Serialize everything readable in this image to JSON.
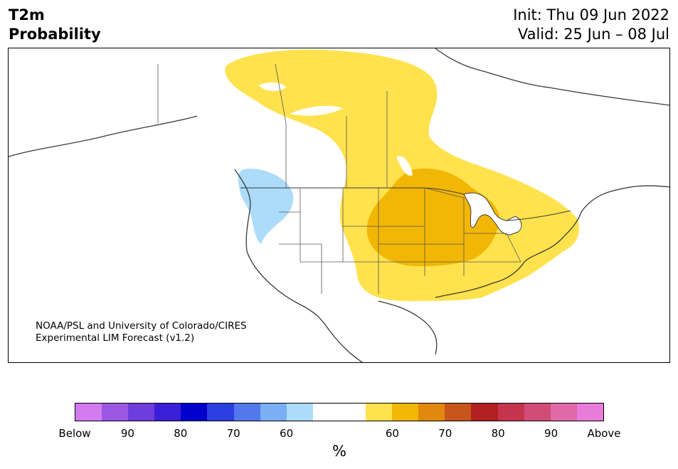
{
  "header": {
    "variable": "T2m",
    "product": "Probability",
    "init": "Init: Thu 09 Jun 2022",
    "valid": "Valid: 25 Jun – 08 Jul"
  },
  "map": {
    "credit_line1": "NOAA/PSL and University of Colorado/CIRES",
    "credit_line2": "Experimental LIM Forecast (v1.2)",
    "regions": [
      {
        "category": "above",
        "level": "50-60",
        "color": "#ffe24d",
        "area": "Canadian Arctic to southern Plains and East Coast"
      },
      {
        "category": "above",
        "level": "60-70",
        "color": "#f2b704",
        "area": "Central Plains and Midwest"
      },
      {
        "category": "below",
        "level": "50-60",
        "color": "#acdcfa",
        "area": "Pacific Northwest"
      }
    ]
  },
  "colorbar": {
    "label": "%",
    "colors": [
      "#d27bf0",
      "#9b58e3",
      "#6f3cdc",
      "#3b1fd6",
      "#0000cd",
      "#2c3fe0",
      "#5377ec",
      "#78aff5",
      "#acdcfa",
      "#ffffff",
      "#ffe24d",
      "#f2b704",
      "#e1880d",
      "#c8561c",
      "#b11f20",
      "#c5344f",
      "#d14d78",
      "#e06aa8",
      "#e77cdb"
    ],
    "ticks": [
      {
        "label": "Below",
        "frac": 0.0
      },
      {
        "label": "90",
        "frac": 0.1
      },
      {
        "label": "80",
        "frac": 0.2
      },
      {
        "label": "70",
        "frac": 0.3
      },
      {
        "label": "60",
        "frac": 0.4
      },
      {
        "label": "60",
        "frac": 0.6
      },
      {
        "label": "70",
        "frac": 0.7
      },
      {
        "label": "80",
        "frac": 0.8
      },
      {
        "label": "90",
        "frac": 0.9
      },
      {
        "label": "Above",
        "frac": 1.0
      }
    ]
  }
}
